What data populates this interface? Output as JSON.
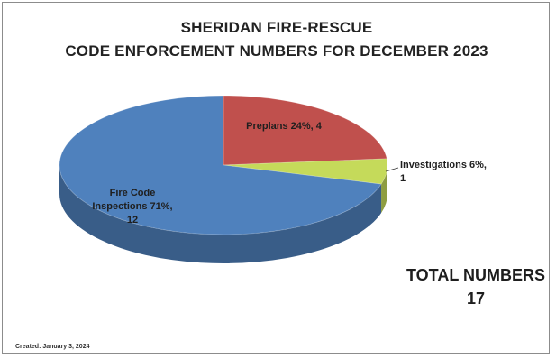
{
  "title_line1": "SHERIDAN FIRE-RESCUE",
  "title_line2": "CODE ENFORCEMENT NUMBERS FOR DECEMBER 2023",
  "total": {
    "label": "TOTAL NUMBERS",
    "value": "17"
  },
  "created": "Created:  January 3, 2024",
  "colors": {
    "fire_code": "#4f81bd",
    "preplans": "#c0504d",
    "investigations": "#9bbb59"
  },
  "chart_data": {
    "type": "pie",
    "title": "SHERIDAN FIRE-RESCUE CODE ENFORCEMENT NUMBERS FOR DECEMBER 2023",
    "slices": [
      {
        "name": "Preplans",
        "value": 4,
        "percent": 24,
        "color": "#c0504d",
        "label_lines": [
          "Preplans  24%, 4"
        ]
      },
      {
        "name": "Investigations",
        "value": 1,
        "percent": 6,
        "color": "#c5da5a",
        "label_lines": [
          "Investigations 6%,",
          "1"
        ]
      },
      {
        "name": "Fire Code Inspections",
        "value": 12,
        "percent": 71,
        "color": "#4f81bd",
        "label_lines": [
          "Fire Code",
          "Inspections 71%,",
          "12"
        ]
      }
    ],
    "legend": "none"
  }
}
